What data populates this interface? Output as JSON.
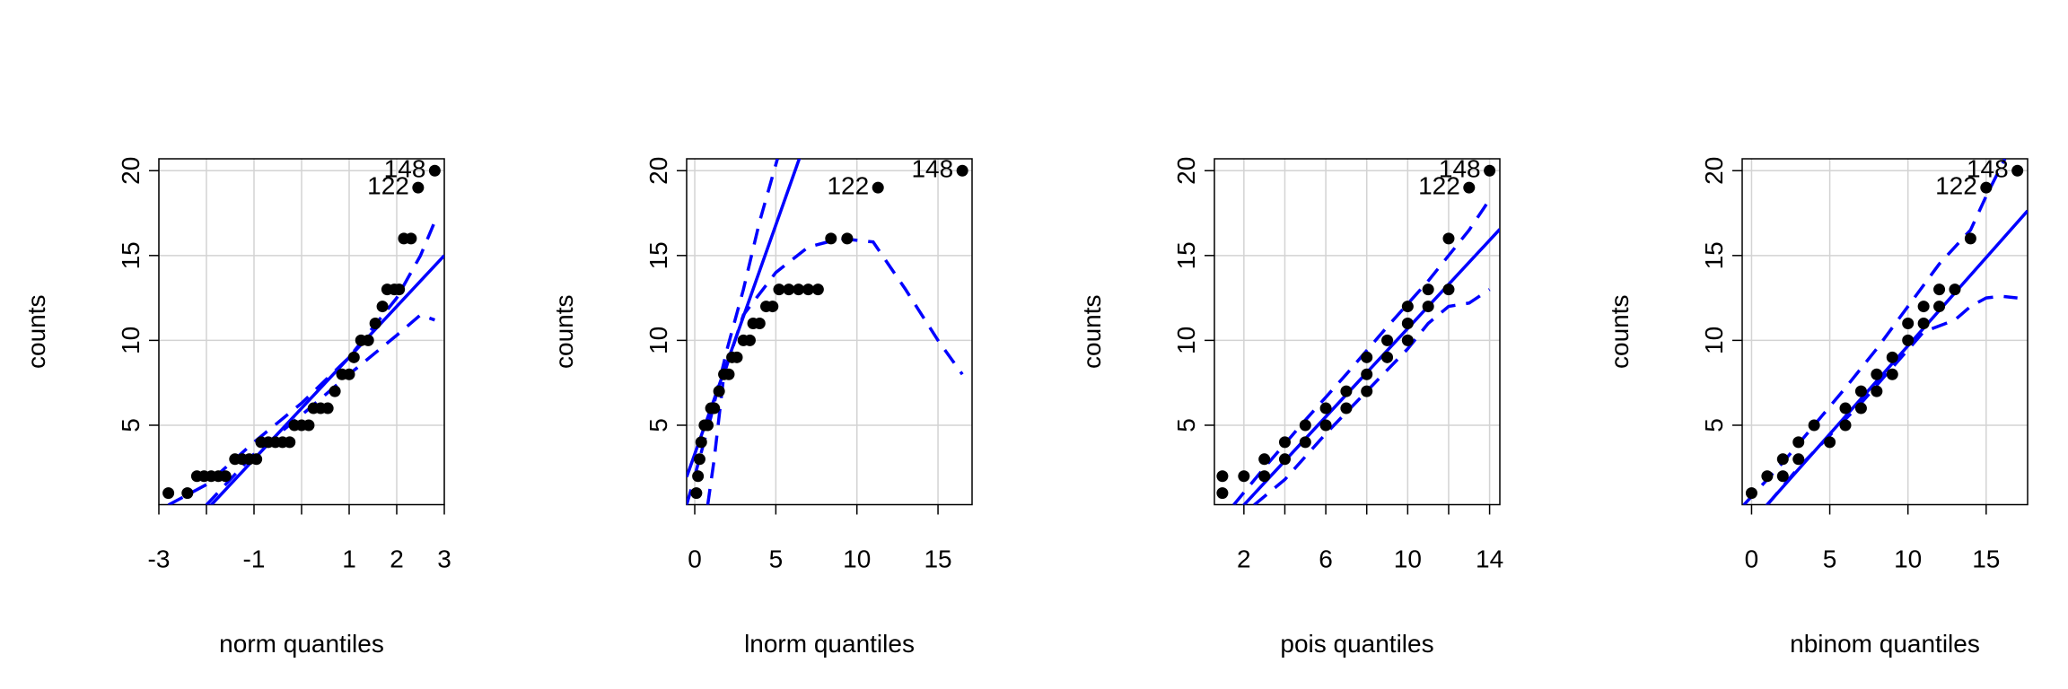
{
  "chart_data": [
    {
      "type": "scatter",
      "x_label": "norm quantiles",
      "y_label": "counts",
      "xlim": [
        -3,
        3
      ],
      "ylim": [
        0.32,
        20.7
      ],
      "xticks": [
        -3,
        {
          "value": -2,
          "label": null
        },
        -1,
        {
          "value": 0,
          "label": null
        },
        1,
        2,
        3
      ],
      "yticks": [
        5,
        10,
        15,
        20
      ],
      "grid": true,
      "point_color": "#000000",
      "line_color": "#0000ff",
      "points": {
        "x": [
          -2.8,
          -2.4,
          -2.2,
          -2.05,
          -1.9,
          -1.75,
          -1.6,
          -1.4,
          -1.25,
          -1.1,
          -0.95,
          -0.85,
          -0.7,
          -0.55,
          -0.4,
          -0.25,
          -0.15,
          0,
          0.15,
          0.25,
          0.4,
          0.55,
          0.7,
          0.85,
          1.0,
          1.1,
          1.25,
          1.4,
          1.55,
          1.7,
          1.8,
          1.95,
          2.05,
          2.15,
          2.3,
          2.45,
          2.8
        ],
        "values": [
          1,
          1,
          2,
          2,
          2,
          2,
          2,
          3,
          3,
          3,
          3,
          4,
          4,
          4,
          4,
          4,
          5,
          5,
          5,
          6,
          6,
          6,
          7,
          8,
          8,
          9,
          10,
          10,
          11,
          12,
          13,
          13,
          13,
          16,
          16,
          19,
          20
        ]
      },
      "fit_line": {
        "intercept": 6,
        "slope": 3
      },
      "envelope": [
        {
          "x": [
            -2.8,
            -2,
            -1,
            0,
            1,
            2,
            2.5,
            2.8
          ],
          "values": [
            0.3,
            1.5,
            4,
            6.3,
            9,
            12.5,
            15,
            17
          ]
        },
        {
          "x": [
            -2,
            -1,
            0,
            1,
            2,
            2.5,
            2.8
          ],
          "values": [
            0.3,
            3.3,
            5.6,
            8,
            10.3,
            11.5,
            11.2
          ]
        }
      ],
      "point_labels": [
        {
          "label": "148",
          "x": 2.8,
          "y": 20
        },
        {
          "label": "122",
          "x": 2.45,
          "y": 19
        }
      ]
    },
    {
      "type": "scatter",
      "x_label": "lnorm quantiles",
      "y_label": "counts",
      "xlim": [
        -0.5,
        17.1
      ],
      "ylim": [
        0.32,
        20.7
      ],
      "xticks": [
        0,
        5,
        10,
        15
      ],
      "yticks": [
        5,
        10,
        15,
        20
      ],
      "grid": true,
      "point_color": "#000000",
      "line_color": "#0000ff",
      "points": {
        "x": [
          0.1,
          0.2,
          0.3,
          0.4,
          0.6,
          0.8,
          1.0,
          1.2,
          1.5,
          1.8,
          2.1,
          2.3,
          2.6,
          3.0,
          3.4,
          3.6,
          4.0,
          4.4,
          4.8,
          5.2,
          5.8,
          6.4,
          7.0,
          7.6,
          8.4,
          9.4,
          11.3,
          16.5
        ],
        "values": [
          1,
          2,
          3,
          4,
          5,
          5,
          6,
          6,
          7,
          8,
          8,
          9,
          9,
          10,
          10,
          11,
          11,
          12,
          12,
          13,
          13,
          13,
          13,
          13,
          16,
          16,
          19,
          20
        ]
      },
      "fit_line": {
        "intercept": 3.3,
        "slope": 2.7
      },
      "envelope": [
        {
          "x": [
            -0.5,
            0,
            1,
            2,
            3,
            4,
            5.1
          ],
          "values": [
            0.3,
            2,
            5.5,
            9.5,
            13,
            17,
            20.7
          ]
        },
        {
          "x": [
            0.8,
            1.2,
            1.8,
            3,
            5,
            7,
            9,
            11,
            13,
            15,
            16.5
          ],
          "values": [
            0.3,
            3,
            8,
            11.5,
            14,
            15.5,
            16,
            15.8,
            13,
            10,
            8
          ]
        }
      ],
      "point_labels": [
        {
          "label": "148",
          "x": 16.5,
          "y": 20
        },
        {
          "label": "122",
          "x": 11.3,
          "y": 19
        }
      ]
    },
    {
      "type": "scatter",
      "x_label": "pois quantiles",
      "y_label": "counts",
      "xlim": [
        0.56,
        14.5
      ],
      "ylim": [
        0.32,
        20.7
      ],
      "xticks": [
        2,
        {
          "value": 4,
          "label": null
        },
        6,
        {
          "value": 8,
          "label": null
        },
        10,
        {
          "value": 12,
          "label": null
        },
        14
      ],
      "yticks": [
        5,
        10,
        15,
        20
      ],
      "grid": true,
      "point_color": "#000000",
      "line_color": "#0000ff",
      "points": {
        "x": [
          0.95,
          0.95,
          2,
          3,
          3,
          4,
          4,
          5,
          5,
          6,
          6,
          7,
          7,
          8,
          8,
          8,
          9,
          9,
          10,
          10,
          10,
          11,
          11,
          12,
          12,
          13,
          14
        ],
        "values": [
          1,
          2,
          2,
          3,
          2,
          4,
          3,
          5,
          4,
          6,
          5,
          7,
          6,
          9,
          8,
          7,
          10,
          9,
          12,
          11,
          10,
          13,
          12,
          16,
          13,
          19,
          20
        ]
      },
      "fit_line": {
        "intercept": -2.3,
        "slope": 1.3
      },
      "envelope": [
        {
          "x": [
            1.5,
            3,
            5,
            7,
            9,
            11,
            12,
            13,
            14
          ],
          "values": [
            0.3,
            2.5,
            5.3,
            8,
            10.8,
            13.5,
            15,
            16.5,
            18.3
          ]
        },
        {
          "x": [
            2.5,
            4,
            6,
            8,
            10,
            11,
            12,
            13,
            14
          ],
          "values": [
            0.3,
            1.8,
            4.5,
            7,
            9.5,
            11,
            12,
            12.2,
            13
          ]
        }
      ],
      "point_labels": [
        {
          "label": "148",
          "x": 14,
          "y": 20
        },
        {
          "label": "122",
          "x": 13,
          "y": 19
        }
      ]
    },
    {
      "type": "scatter",
      "x_label": "nbinom quantiles",
      "y_label": "counts",
      "xlim": [
        -0.6,
        17.65
      ],
      "ylim": [
        0.32,
        20.7
      ],
      "xticks": [
        0,
        5,
        10,
        15
      ],
      "yticks": [
        5,
        10,
        15,
        20
      ],
      "grid": true,
      "point_color": "#000000",
      "line_color": "#0000ff",
      "points": {
        "x": [
          0,
          1,
          2,
          2,
          3,
          3,
          4,
          5,
          6,
          6,
          7,
          7,
          8,
          8,
          9,
          9,
          10,
          10,
          11,
          11,
          12,
          12,
          13,
          14,
          15,
          17
        ],
        "values": [
          1,
          2,
          3,
          2,
          4,
          3,
          5,
          4,
          5,
          6,
          7,
          6,
          8,
          7,
          9,
          8,
          11,
          10,
          12,
          11,
          13,
          12,
          13,
          16,
          19,
          20
        ]
      },
      "fit_line": {
        "intercept": -0.72,
        "slope": 1.04
      },
      "envelope": [
        {
          "x": [
            -0.5,
            2,
            4,
            6,
            8,
            10,
            12,
            14,
            15,
            16.2
          ],
          "values": [
            0.3,
            2.8,
            5,
            7.2,
            9.5,
            12,
            14.5,
            16.5,
            18.5,
            20.7
          ]
        },
        {
          "x": [
            1,
            3,
            5,
            7,
            9,
            11,
            13,
            14,
            15,
            16,
            17
          ],
          "values": [
            0.3,
            2.5,
            4.4,
            6.3,
            8.4,
            10.5,
            11.2,
            12,
            12.5,
            12.6,
            12.5
          ]
        }
      ],
      "point_labels": [
        {
          "label": "148",
          "x": 17,
          "y": 20
        },
        {
          "label": "122",
          "x": 15,
          "y": 19
        }
      ]
    }
  ]
}
